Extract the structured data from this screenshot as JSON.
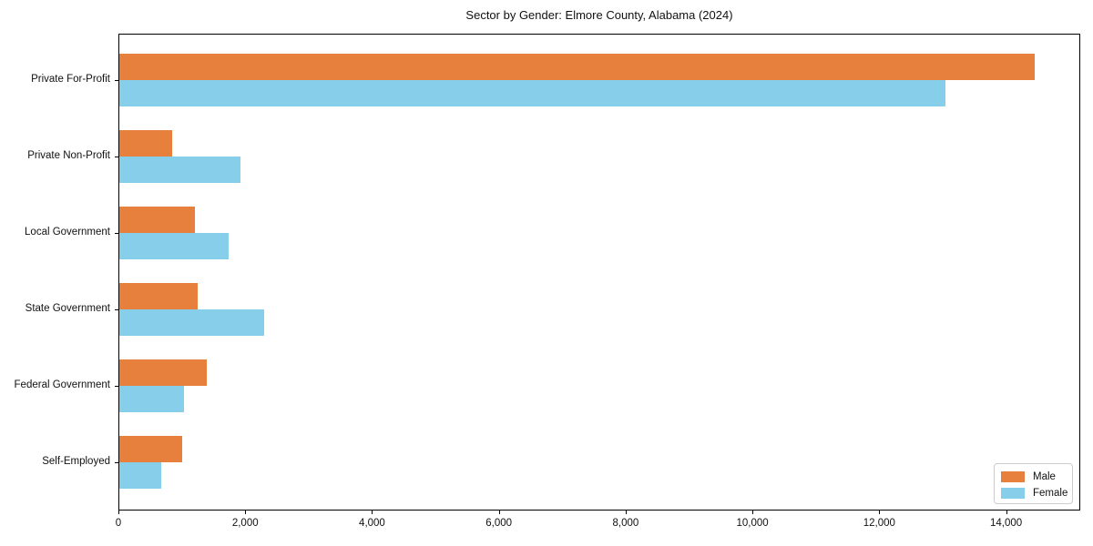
{
  "figure": {
    "background": "#ffffff"
  },
  "chart_data": {
    "type": "bar",
    "orientation": "horizontal",
    "title": "Sector by Gender: Elmore County, Alabama (2024)",
    "xlabel": "",
    "ylabel": "",
    "categories": [
      "Private For-Profit",
      "Private Non-Profit",
      "Local Government",
      "State Government",
      "Federal Government",
      "Self-Employed"
    ],
    "series": [
      {
        "name": "Male",
        "color": "#E8803D",
        "values": [
          14450,
          845,
          1210,
          1255,
          1395,
          1010
        ]
      },
      {
        "name": "Female",
        "color": "#87CEEB",
        "values": [
          13050,
          1930,
          1745,
          2295,
          1040,
          670
        ]
      }
    ],
    "xlim": [
      0,
      15170
    ],
    "xticks": [
      0,
      2000,
      4000,
      6000,
      8000,
      10000,
      12000,
      14000
    ],
    "xtick_labels": [
      "0",
      "2,000",
      "4,000",
      "6,000",
      "8,000",
      "10,000",
      "12,000",
      "14,000"
    ],
    "grid": false,
    "legend": {
      "position": "lower right",
      "entries": [
        "Male",
        "Female"
      ]
    },
    "axis_color": "#000000",
    "text_color": "#111111"
  }
}
